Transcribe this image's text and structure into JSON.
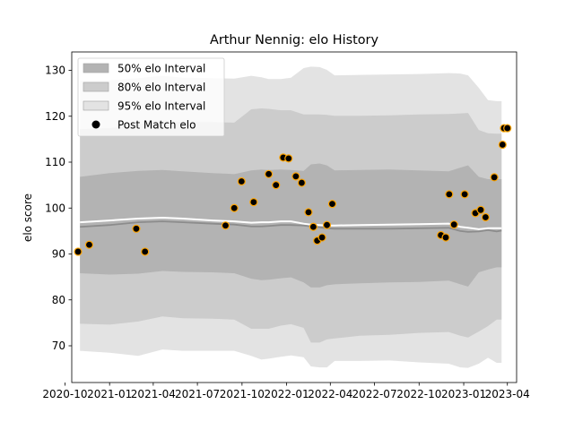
{
  "chart_data": {
    "type": "scatter",
    "title": "Arthur Nennig: elo History",
    "ylabel": "elo score",
    "xlabel": "",
    "ylim": [
      62,
      134
    ],
    "xlim": [
      "2020-10-15",
      "2023-04-20"
    ],
    "yticks": [
      70,
      80,
      90,
      100,
      110,
      120,
      130
    ],
    "xticks": [
      "2020-10",
      "2021-01",
      "2021-04",
      "2021-07",
      "2021-10",
      "2022-01",
      "2022-04",
      "2022-07",
      "2022-10",
      "2023-01",
      "2023-04"
    ],
    "grid": false,
    "legend_position": "top-left",
    "legend": [
      {
        "key": "band50",
        "label": "50% elo Interval"
      },
      {
        "key": "band80",
        "label": "80% elo Interval"
      },
      {
        "key": "band95",
        "label": "95% elo Interval"
      },
      {
        "key": "points",
        "label": "Post Match elo"
      }
    ],
    "colors": {
      "band50": "#b3b3b3",
      "band80": "#cccccc",
      "band95": "#e3e3e3",
      "mean_line": "#8c8c8c",
      "white_line": "#ffffff",
      "point_fill": "#000000",
      "point_edge": "#ffa500"
    },
    "intervals": {
      "x": [
        "2020-11-01",
        "2021-01-01",
        "2021-03-01",
        "2021-04-20",
        "2021-06-01",
        "2021-08-01",
        "2021-09-15",
        "2021-10-20",
        "2021-11-10",
        "2021-11-25",
        "2021-12-20",
        "2022-01-10",
        "2022-02-05",
        "2022-02-20",
        "2022-03-10",
        "2022-03-25",
        "2022-04-10",
        "2022-06-01",
        "2022-08-01",
        "2022-10-01",
        "2022-12-01",
        "2022-12-25",
        "2023-01-10",
        "2023-02-01",
        "2023-02-20",
        "2023-03-10",
        "2023-03-20"
      ],
      "mean": [
        95.9,
        96.3,
        96.9,
        97.1,
        96.9,
        96.6,
        96.4,
        96.0,
        96.0,
        96.1,
        96.3,
        96.3,
        96.2,
        96.0,
        95.8,
        95.6,
        95.5,
        95.5,
        95.5,
        95.6,
        95.7,
        95.0,
        94.8,
        94.9,
        95.2,
        94.9,
        95.1
      ],
      "upper": [
        96.9,
        97.3,
        97.7,
        97.9,
        97.7,
        97.3,
        97.1,
        96.8,
        96.9,
        96.9,
        97.1,
        97.1,
        96.6,
        96.4,
        96.3,
        96.2,
        96.2,
        96.3,
        96.4,
        96.5,
        96.6,
        95.9,
        95.7,
        95.4,
        95.6,
        95.6,
        95.6
      ],
      "p50_lo": [
        85.8,
        85.5,
        85.7,
        86.3,
        86.1,
        86.0,
        85.8,
        84.6,
        84.3,
        84.4,
        84.7,
        84.9,
        83.8,
        82.7,
        82.7,
        83.2,
        83.4,
        83.6,
        83.8,
        83.9,
        84.2,
        83.4,
        82.9,
        86.0,
        86.6,
        87.1,
        87.1
      ],
      "p50_hi": [
        106.8,
        107.6,
        108.1,
        108.3,
        108.0,
        107.6,
        107.4,
        108.2,
        108.4,
        108.3,
        108.4,
        108.3,
        108.1,
        109.5,
        109.7,
        109.3,
        108.2,
        108.3,
        108.4,
        108.2,
        108.0,
        108.8,
        109.3,
        106.8,
        106.3,
        106.3,
        106.3
      ],
      "p80_lo": [
        74.8,
        74.6,
        75.3,
        76.4,
        76.0,
        75.9,
        75.7,
        73.7,
        73.7,
        73.7,
        74.4,
        74.7,
        73.9,
        70.7,
        70.7,
        71.4,
        71.6,
        72.2,
        72.4,
        72.8,
        73.0,
        72.2,
        71.8,
        73.1,
        74.3,
        75.7,
        75.7
      ],
      "p80_hi": [
        117.2,
        117.4,
        118.2,
        119.1,
        118.7,
        118.7,
        118.6,
        121.5,
        121.7,
        121.6,
        121.3,
        121.3,
        120.4,
        120.4,
        120.4,
        120.3,
        120.1,
        120.1,
        120.2,
        120.4,
        120.5,
        120.6,
        120.7,
        117.0,
        116.3,
        116.2,
        116.2
      ],
      "p95_lo": [
        68.9,
        68.5,
        67.8,
        69.2,
        68.9,
        68.9,
        68.9,
        67.8,
        67.0,
        67.2,
        67.6,
        67.9,
        67.5,
        65.5,
        65.3,
        65.3,
        66.7,
        66.7,
        66.8,
        66.4,
        66.1,
        65.3,
        65.2,
        66.1,
        67.4,
        66.3,
        66.3
      ],
      "p95_hi": [
        127.8,
        127.8,
        128.3,
        128.8,
        128.4,
        128.3,
        128.2,
        128.8,
        128.5,
        128.1,
        128.1,
        128.4,
        130.5,
        130.8,
        130.7,
        130.1,
        128.9,
        129.0,
        129.1,
        129.2,
        129.4,
        129.3,
        128.9,
        126.2,
        123.5,
        123.3,
        123.3
      ]
    },
    "points": {
      "x": [
        "2020-10-28",
        "2020-11-20",
        "2021-02-25",
        "2021-03-15",
        "2021-08-28",
        "2021-09-15",
        "2021-09-30",
        "2021-10-25",
        "2021-11-25",
        "2021-12-10",
        "2021-12-25",
        "2022-01-05",
        "2022-01-20",
        "2022-02-01",
        "2022-02-15",
        "2022-02-25",
        "2022-03-05",
        "2022-03-15",
        "2022-03-25",
        "2022-04-05",
        "2022-11-15",
        "2022-11-25",
        "2022-12-02",
        "2022-12-12",
        "2023-01-03",
        "2023-01-25",
        "2023-02-05",
        "2023-02-15",
        "2023-03-05",
        "2023-03-22",
        "2023-03-25",
        "2023-04-01"
      ],
      "y": [
        90.5,
        92.0,
        95.5,
        90.5,
        96.2,
        100.0,
        105.8,
        101.3,
        107.4,
        105.0,
        111.0,
        110.8,
        106.9,
        105.5,
        99.1,
        95.9,
        92.9,
        93.6,
        96.3,
        100.9,
        94.1,
        93.6,
        103.0,
        96.4,
        103.0,
        98.9,
        99.6,
        98.0,
        106.7,
        113.8,
        117.4,
        117.4
      ]
    }
  }
}
